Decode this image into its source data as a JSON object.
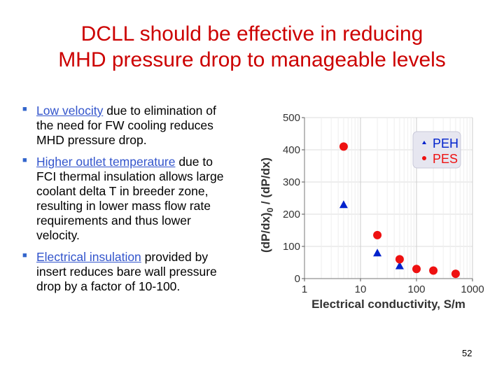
{
  "slide": {
    "title_line1": "DCLL should be effective in reducing",
    "title_line2": "MHD pressure drop to manageable levels",
    "page_number": "52",
    "colors": {
      "title": "#cc0000",
      "highlight": "#3355cc",
      "peh": "#0022cc",
      "pes": "#ee1111"
    }
  },
  "bullets": [
    {
      "highlight": "Low velocity",
      "text": " due to elimination of the need for FW cooling reduces MHD pressure drop."
    },
    {
      "highlight": "Higher outlet temperature",
      "text": " due to FCI thermal insulation allows large coolant delta T in breeder zone, resulting in lower mass flow rate requirements and thus lower velocity."
    },
    {
      "highlight": "Electrical insulation",
      "text": " provided by insert reduces bare wall pressure drop by a factor of 10-100."
    }
  ],
  "chart_data": {
    "type": "scatter",
    "xlabel": "Electrical conductivity, S/m",
    "ylabel_parts": {
      "main": "(dP/dx)",
      "sub": "0",
      "rest": " / (dP/dx)"
    },
    "xscale": "log",
    "xlim": [
      1,
      1000
    ],
    "ylim": [
      0,
      500
    ],
    "xticks": [
      1,
      10,
      100,
      1000
    ],
    "xtick_labels": [
      "1",
      "10",
      "100",
      "1000"
    ],
    "yticks": [
      0,
      100,
      200,
      300,
      400,
      500
    ],
    "ytick_labels": [
      "0",
      "100",
      "200",
      "300",
      "400",
      "500"
    ],
    "grid": true,
    "legend_position": "top-right",
    "series": [
      {
        "name": "PEH",
        "marker": "triangle",
        "color": "#0022cc",
        "x": [
          5,
          20,
          50
        ],
        "y": [
          230,
          80,
          40
        ]
      },
      {
        "name": "PES",
        "marker": "circle",
        "color": "#ee1111",
        "x": [
          5,
          20,
          50,
          100,
          200,
          500
        ],
        "y": [
          410,
          135,
          60,
          30,
          25,
          15
        ]
      }
    ]
  }
}
